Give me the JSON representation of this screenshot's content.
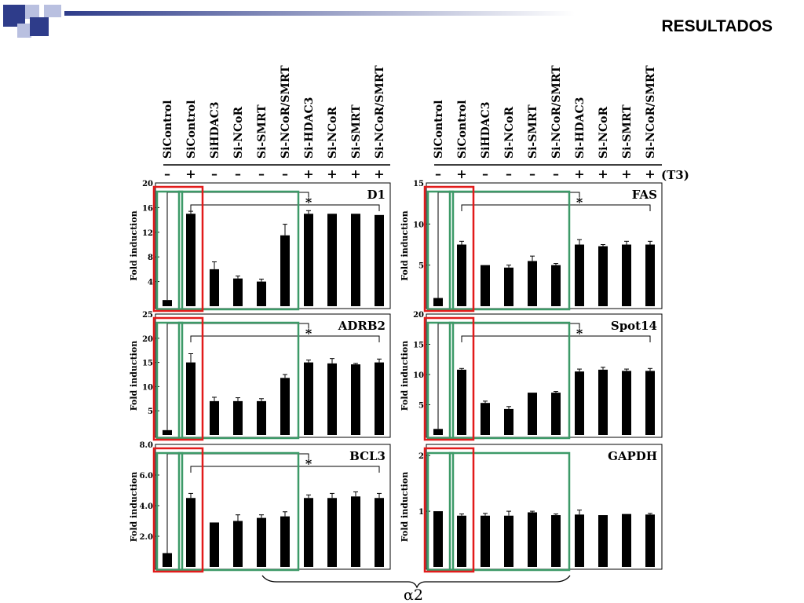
{
  "slide": {
    "title": "RESULTADOS"
  },
  "colors": {
    "bar": "#000000",
    "red_box": "#e21b1b",
    "green_box": "#3d9a68",
    "deco_dark": "#2e3c8a",
    "deco_light": "#b9c0e0"
  },
  "conditions": [
    "SiControl",
    "SiControl",
    "SiHDAC3",
    "Si-NCoR",
    "Si-SMRT",
    "Si-NCoR/SMRT",
    "Si-HDAC3",
    "Si-NCoR",
    "Si-SMRT",
    "Si-NCoR/SMRT"
  ],
  "t3_signs": [
    "–",
    "+",
    "–",
    "–",
    "–",
    "–",
    "+",
    "+",
    "+",
    "+"
  ],
  "t3_label": "(T3)",
  "alpha_label": "α2",
  "star": "*",
  "ylabel": "Fold induction",
  "chart_data": [
    {
      "type": "bar",
      "title": "D1",
      "ylabel": "Fold induction",
      "ylim": [
        0,
        20
      ],
      "yticks": [
        4,
        8,
        12,
        16,
        20
      ],
      "ytick_labels": [
        "4",
        "8",
        "12",
        "16",
        "20"
      ],
      "categories": [
        "SiControl –",
        "SiControl +",
        "SiHDAC3 –",
        "Si-NCoR –",
        "Si-SMRT –",
        "Si-NCoR/SMRT –",
        "Si-HDAC3 +",
        "Si-NCoR +",
        "Si-SMRT +",
        "Si-NCoR/SMRT +"
      ],
      "values": [
        1,
        15,
        6,
        4.5,
        4,
        11.5,
        15,
        15,
        15,
        14.8
      ],
      "errors": [
        0,
        0.4,
        1.2,
        0.4,
        0.4,
        1.8,
        0.5,
        0,
        0,
        0
      ]
    },
    {
      "type": "bar",
      "title": "ADRB2",
      "ylabel": "Fold induction",
      "ylim": [
        0,
        25
      ],
      "yticks": [
        5,
        10,
        15,
        20,
        25
      ],
      "ytick_labels": [
        "5",
        "10",
        "15",
        "20",
        "25"
      ],
      "categories": [
        "SiControl –",
        "SiControl +",
        "SiHDAC3 –",
        "Si-NCoR –",
        "Si-SMRT –",
        "Si-NCoR/SMRT –",
        "Si-HDAC3 +",
        "Si-NCoR +",
        "Si-SMRT +",
        "Si-NCoR/SMRT +"
      ],
      "values": [
        1,
        15,
        7,
        7,
        7,
        11.8,
        15,
        14.8,
        14.6,
        15
      ],
      "errors": [
        0,
        1.8,
        0.8,
        0.7,
        0.5,
        0.7,
        0.5,
        1,
        0.2,
        0.7
      ]
    },
    {
      "type": "bar",
      "title": "BCL3",
      "ylabel": "Fold induction",
      "ylim": [
        0,
        8
      ],
      "yticks": [
        2,
        4,
        6,
        8
      ],
      "ytick_labels": [
        "2.0",
        "4.0",
        "6.0",
        "8.0"
      ],
      "categories": [
        "SiControl –",
        "SiControl +",
        "SiHDAC3 –",
        "Si-NCoR –",
        "Si-SMRT –",
        "Si-NCoR/SMRT –",
        "Si-HDAC3 +",
        "Si-NCoR +",
        "Si-SMRT +",
        "Si-NCoR/SMRT +"
      ],
      "values": [
        0.9,
        4.5,
        2.9,
        3,
        3.2,
        3.3,
        4.5,
        4.5,
        4.6,
        4.5
      ],
      "errors": [
        0,
        0.3,
        0,
        0.4,
        0.2,
        0.3,
        0.2,
        0.3,
        0.3,
        0.3
      ]
    },
    {
      "type": "bar",
      "title": "FAS",
      "ylabel": "Fold induction",
      "ylim": [
        0,
        15
      ],
      "yticks": [
        5,
        10,
        15
      ],
      "ytick_labels": [
        "5",
        "10",
        "15"
      ],
      "categories": [
        "SiControl –",
        "SiControl +",
        "SiHDAC3 –",
        "Si-NCoR –",
        "Si-SMRT –",
        "Si-NCoR/SMRT –",
        "Si-HDAC3 +",
        "Si-NCoR +",
        "Si-SMRT +",
        "Si-NCoR/SMRT +"
      ],
      "values": [
        1,
        7.5,
        5,
        4.7,
        5.5,
        5,
        7.5,
        7.3,
        7.5,
        7.5
      ],
      "errors": [
        0,
        0.4,
        0,
        0.3,
        0.6,
        0.2,
        0.6,
        0.2,
        0.4,
        0.4
      ]
    },
    {
      "type": "bar",
      "title": "Spot14",
      "ylabel": "Fold induction",
      "ylim": [
        0,
        20
      ],
      "yticks": [
        5,
        10,
        15,
        20
      ],
      "ytick_labels": [
        "5",
        "10",
        "15",
        "20"
      ],
      "categories": [
        "SiControl –",
        "SiControl +",
        "SiHDAC3 –",
        "Si-NCoR –",
        "Si-SMRT –",
        "Si-NCoR/SMRT –",
        "Si-HDAC3 +",
        "Si-NCoR +",
        "Si-SMRT +",
        "Si-NCoR/SMRT +"
      ],
      "values": [
        1,
        10.8,
        5.3,
        4.3,
        7,
        7,
        10.5,
        10.8,
        10.6,
        10.6
      ],
      "errors": [
        0,
        0.2,
        0.3,
        0.4,
        0,
        0.2,
        0.4,
        0.4,
        0.3,
        0.4
      ]
    },
    {
      "type": "bar",
      "title": "GAPDH",
      "ylabel": "Fold induction",
      "ylim": [
        0,
        2.2
      ],
      "yticks": [
        1,
        2
      ],
      "ytick_labels": [
        "1",
        "2"
      ],
      "categories": [
        "SiControl –",
        "SiControl +",
        "SiHDAC3 –",
        "Si-NCoR –",
        "Si-SMRT –",
        "Si-NCoR/SMRT –",
        "Si-HDAC3 +",
        "Si-NCoR +",
        "Si-SMRT +",
        "Si-NCoR/SMRT +"
      ],
      "values": [
        1,
        0.92,
        0.92,
        0.92,
        0.98,
        0.93,
        0.94,
        0.93,
        0.95,
        0.94
      ],
      "errors": [
        0,
        0.03,
        0.04,
        0.08,
        0.02,
        0.02,
        0.08,
        0,
        0,
        0.02
      ]
    }
  ]
}
